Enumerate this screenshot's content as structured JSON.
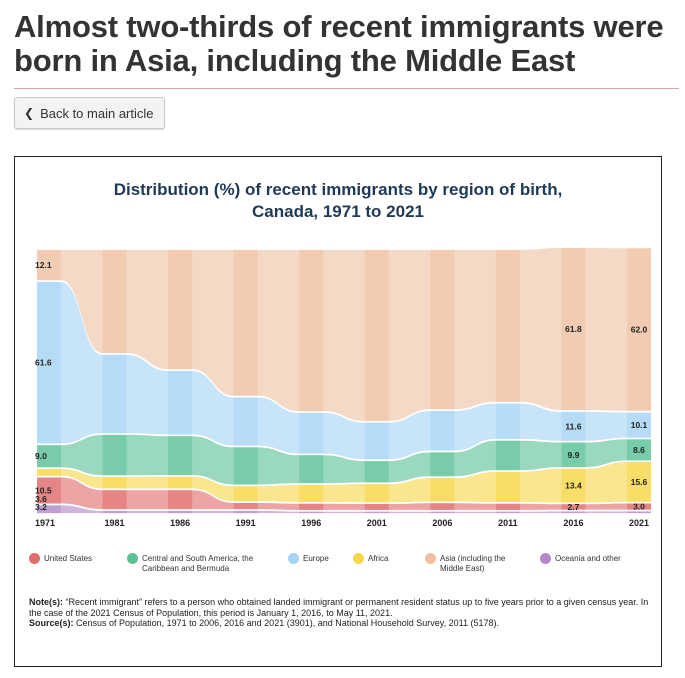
{
  "page": {
    "title": "Almost two-thirds of recent immigrants were born in Asia, including the Middle East",
    "back_label": "Back to main article"
  },
  "colors": {
    "us": "#e06c6c",
    "csa": "#5cc197",
    "europe": "#a7d3f5",
    "africa": "#f7d64a",
    "asia": "#eec1a3",
    "oceania": "#b488c8"
  },
  "chart_data": {
    "type": "area",
    "title": "Distribution (%) of recent immigrants by region of birth, Canada, 1971 to 2021",
    "title_line1": "Distribution (%) of recent immigrants by region of birth,",
    "title_line2": "Canada, 1971 to 2021",
    "categories": [
      "1971",
      "1981",
      "1986",
      "1991",
      "1996",
      "2001",
      "2006",
      "2011",
      "2016",
      "2021"
    ],
    "stack_order_bottom_to_top": [
      "Oceania and other",
      "United States",
      "Africa",
      "Central and South America, the Caribbean and Bermuda",
      "Europe",
      "Asia (including the Middle East)"
    ],
    "series": [
      {
        "name": "Oceania and other",
        "key": "oceania",
        "values": [
          3.6,
          1.5,
          1.5,
          1.5,
          1.2,
          1.2,
          1.2,
          1.2,
          1.3,
          1.3
        ]
      },
      {
        "name": "United States",
        "key": "us",
        "values": [
          10.5,
          7.8,
          7.8,
          3.0,
          3.0,
          2.9,
          3.2,
          3.0,
          2.7,
          3.0
        ]
      },
      {
        "name": "Africa",
        "key": "africa",
        "values": [
          3.2,
          5.0,
          5.1,
          6.3,
          7.1,
          7.5,
          9.5,
          12.0,
          13.4,
          15.6
        ]
      },
      {
        "name": "Central and South America, the Caribbean and Bermuda",
        "key": "csa",
        "values": [
          9.0,
          15.9,
          15.3,
          14.7,
          11.2,
          8.7,
          9.7,
          11.8,
          9.9,
          8.6
        ]
      },
      {
        "name": "Europe",
        "key": "europe",
        "values": [
          61.6,
          30.2,
          24.6,
          18.8,
          16.0,
          14.5,
          15.6,
          14.0,
          11.6,
          10.1
        ]
      },
      {
        "name": "Asia (including the Middle East)",
        "key": "asia",
        "values": [
          12.1,
          39.6,
          45.7,
          55.7,
          61.5,
          65.2,
          60.8,
          58.0,
          61.8,
          62.0
        ]
      }
    ],
    "labels": [
      {
        "year": "1971",
        "series": "europe",
        "text": "61.6"
      },
      {
        "year": "1971",
        "series": "asia",
        "text": "12.1"
      },
      {
        "year": "1971",
        "series": "us",
        "text": "10.5"
      },
      {
        "year": "1971",
        "series": "csa",
        "text": "9.0"
      },
      {
        "year": "1971",
        "series": "oceania",
        "text": "3.6"
      },
      {
        "year": "1971",
        "series": "africa",
        "text": "3.2"
      },
      {
        "year": "2016",
        "series": "asia",
        "text": "61.8"
      },
      {
        "year": "2016",
        "series": "africa",
        "text": "13.4"
      },
      {
        "year": "2016",
        "series": "europe",
        "text": "11.6"
      },
      {
        "year": "2016",
        "series": "csa",
        "text": "9.9"
      },
      {
        "year": "2016",
        "series": "us",
        "text": "2.7"
      },
      {
        "year": "2021",
        "series": "asia",
        "text": "62.0"
      },
      {
        "year": "2021",
        "series": "africa",
        "text": "15.6"
      },
      {
        "year": "2021",
        "series": "europe",
        "text": "10.1"
      },
      {
        "year": "2021",
        "series": "csa",
        "text": "8.6"
      },
      {
        "year": "2021",
        "series": "us",
        "text": "3.0"
      }
    ],
    "ylim": [
      0,
      100
    ],
    "xlabel": "",
    "ylabel": ""
  },
  "legend": [
    {
      "key": "us",
      "line1": "United States",
      "line2": ""
    },
    {
      "key": "csa",
      "line1": "Central and South America, the",
      "line2": "Caribbean and Bermuda"
    },
    {
      "key": "europe",
      "line1": "Europe",
      "line2": ""
    },
    {
      "key": "africa",
      "line1": "Africa",
      "line2": ""
    },
    {
      "key": "asia",
      "line1": "Asia (including the",
      "line2": "Middle East)"
    },
    {
      "key": "oceania",
      "line1": "Oceania and other",
      "line2": ""
    }
  ],
  "notes": {
    "note_label": "Note(s):",
    "note_text": "“Recent immigrant” refers to a person who obtained landed immigrant or permanent resident status up to five years prior to a given census year. In the case of the 2021 Census of Population, this period is January 1, 2016, to May 11, 2021.",
    "source_label": "Source(s):",
    "source_text": "Census of Population, 1971 to 2006, 2016 and 2021 (3901), and National Household Survey, 2011 (5178)."
  }
}
